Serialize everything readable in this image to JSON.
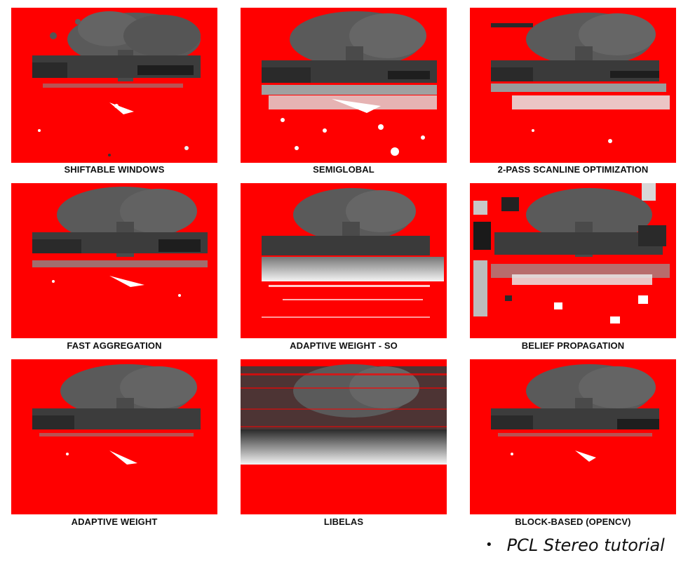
{
  "panels": [
    {
      "caption": "SHIFTABLE WINDOWS"
    },
    {
      "caption": "SEMIGLOBAL"
    },
    {
      "caption": "2-PASS SCANLINE OPTIMIZATION"
    },
    {
      "caption": "FAST AGGREGATION"
    },
    {
      "caption": "ADAPTIVE WEIGHT - SO"
    },
    {
      "caption": "BELIEF PROPAGATION"
    },
    {
      "caption": "ADAPTIVE WEIGHT"
    },
    {
      "caption": "LIBELAS"
    },
    {
      "caption": "BLOCK-BASED (OPENCV)"
    }
  ],
  "note": {
    "bullet": "•",
    "text": "PCL Stereo tutorial"
  },
  "colors": {
    "background": "#ff0000",
    "depth_dark": "#3a3a3a",
    "depth_mid": "#5a5a5a",
    "depth_light": "#d8d8d8"
  }
}
